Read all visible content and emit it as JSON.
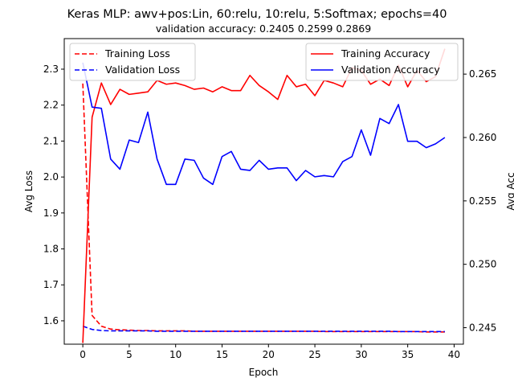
{
  "chart_data": {
    "type": "line",
    "title": "Keras MLP: awv+pos:Lin, 60:relu, 10:relu, 5:Softmax; epochs=40",
    "subtitle": "validation accuracy:  0.2405  0.2599  0.2869",
    "xlabel": "Epoch",
    "ylabel_left": "Avg Loss",
    "ylabel_right": "Avg Acc",
    "xlim": [
      -2,
      41
    ],
    "ylim_left": [
      1.535,
      2.385
    ],
    "ylim_right": [
      0.2437,
      0.2678
    ],
    "xticks": [
      "0",
      "5",
      "10",
      "15",
      "20",
      "25",
      "30",
      "35",
      "40"
    ],
    "yticks_left": [
      "1.6",
      "1.7",
      "1.8",
      "1.9",
      "2.0",
      "2.1",
      "2.2",
      "2.3"
    ],
    "yticks_right": [
      "0.245",
      "0.250",
      "0.255",
      "0.260",
      "0.265"
    ],
    "grid": false,
    "legend_left_placement": "top-left",
    "legend_right_placement": "top-right",
    "x": [
      0,
      1,
      2,
      3,
      4,
      5,
      6,
      7,
      8,
      9,
      10,
      11,
      12,
      13,
      14,
      15,
      16,
      17,
      18,
      19,
      20,
      21,
      22,
      23,
      24,
      25,
      26,
      27,
      28,
      29,
      30,
      31,
      32,
      33,
      34,
      35,
      36,
      37,
      38,
      39
    ],
    "series": [
      {
        "name": "Training Loss",
        "axis": "left",
        "style": "dashed",
        "color": "#ff0000",
        "values": [
          2.26,
          1.615,
          1.585,
          1.577,
          1.575,
          1.574,
          1.573,
          1.573,
          1.572,
          1.572,
          1.572,
          1.572,
          1.571,
          1.571,
          1.571,
          1.571,
          1.571,
          1.571,
          1.571,
          1.571,
          1.571,
          1.571,
          1.571,
          1.571,
          1.571,
          1.571,
          1.57,
          1.57,
          1.57,
          1.57,
          1.57,
          1.57,
          1.57,
          1.57,
          1.57,
          1.57,
          1.57,
          1.569,
          1.569,
          1.569
        ]
      },
      {
        "name": "Validation Loss",
        "axis": "left",
        "style": "dashed",
        "color": "#0000ff",
        "values": [
          1.585,
          1.576,
          1.573,
          1.572,
          1.572,
          1.572,
          1.572,
          1.572,
          1.571,
          1.571,
          1.571,
          1.571,
          1.571,
          1.571,
          1.571,
          1.571,
          1.571,
          1.571,
          1.571,
          1.571,
          1.571,
          1.571,
          1.571,
          1.571,
          1.571,
          1.571,
          1.571,
          1.571,
          1.571,
          1.571,
          1.571,
          1.571,
          1.571,
          1.571,
          1.57,
          1.57,
          1.57,
          1.57,
          1.57,
          1.57
        ]
      },
      {
        "name": "Training Accuracy",
        "axis": "right",
        "style": "solid",
        "color": "#ff0000",
        "values": [
          0.2438,
          0.2616,
          0.2643,
          0.2626,
          0.2638,
          0.2634,
          0.2635,
          0.2636,
          0.2645,
          0.2642,
          0.2643,
          0.2641,
          0.2638,
          0.2639,
          0.2636,
          0.264,
          0.2637,
          0.2637,
          0.2649,
          0.2641,
          0.2636,
          0.263,
          0.2649,
          0.264,
          0.2642,
          0.2633,
          0.2645,
          0.2643,
          0.264,
          0.2655,
          0.2653,
          0.2642,
          0.2646,
          0.2641,
          0.2657,
          0.264,
          0.2653,
          0.2644,
          0.2648,
          0.267
        ]
      },
      {
        "name": "Validation Accuracy",
        "axis": "right",
        "style": "solid",
        "color": "#0000ff",
        "values": [
          0.2659,
          0.2624,
          0.2623,
          0.2583,
          0.2575,
          0.2598,
          0.2596,
          0.262,
          0.2583,
          0.2563,
          0.2563,
          0.2583,
          0.2582,
          0.2568,
          0.2563,
          0.2585,
          0.2589,
          0.2575,
          0.2574,
          0.2582,
          0.2575,
          0.2576,
          0.2576,
          0.2566,
          0.2574,
          0.2569,
          0.257,
          0.2569,
          0.2581,
          0.2585,
          0.2606,
          0.2586,
          0.2615,
          0.2611,
          0.2626,
          0.2597,
          0.2597,
          0.2592,
          0.2595,
          0.26
        ]
      }
    ]
  }
}
